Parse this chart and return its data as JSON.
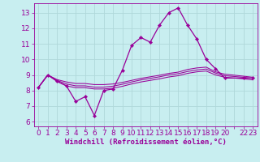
{
  "background_color": "#c8eef0",
  "grid_color": "#b0d8da",
  "line_color": "#990099",
  "xlabel": "Windchill (Refroidissement éolien,°C)",
  "ylabel_ticks": [
    6,
    7,
    8,
    9,
    10,
    11,
    12,
    13
  ],
  "line1_x": [
    0,
    1,
    2,
    3,
    4,
    5,
    6,
    7,
    8,
    9,
    10,
    11,
    12,
    13,
    14,
    15,
    16,
    17,
    18,
    19,
    20,
    22,
    23
  ],
  "line1_y": [
    8.2,
    9.0,
    8.6,
    8.3,
    7.3,
    7.6,
    6.4,
    8.0,
    8.1,
    9.3,
    10.9,
    11.4,
    11.1,
    12.2,
    13.0,
    13.3,
    12.2,
    11.3,
    10.0,
    9.4,
    8.8,
    8.8,
    8.8
  ],
  "line2_x": [
    0,
    1,
    2,
    3,
    4,
    5,
    6,
    7,
    8,
    9,
    10,
    11,
    12,
    13,
    14,
    15,
    16,
    17,
    18,
    19,
    20,
    22,
    23
  ],
  "line2_y": [
    8.2,
    9.0,
    8.7,
    8.55,
    8.45,
    8.45,
    8.38,
    8.38,
    8.42,
    8.52,
    8.65,
    8.78,
    8.88,
    8.98,
    9.1,
    9.18,
    9.35,
    9.45,
    9.5,
    9.2,
    9.05,
    8.92,
    8.85
  ],
  "line3_x": [
    0,
    1,
    2,
    3,
    4,
    5,
    6,
    7,
    8,
    9,
    10,
    11,
    12,
    13,
    14,
    15,
    16,
    17,
    18,
    19,
    20,
    22,
    23
  ],
  "line3_y": [
    8.2,
    9.0,
    8.65,
    8.42,
    8.3,
    8.3,
    8.22,
    8.22,
    8.28,
    8.4,
    8.55,
    8.68,
    8.78,
    8.88,
    9.0,
    9.08,
    9.22,
    9.32,
    9.38,
    9.12,
    8.95,
    8.85,
    8.78
  ],
  "line4_x": [
    0,
    1,
    2,
    3,
    4,
    5,
    6,
    7,
    8,
    9,
    10,
    11,
    12,
    13,
    14,
    15,
    16,
    17,
    18,
    19,
    20,
    22,
    23
  ],
  "line4_y": [
    8.2,
    9.0,
    8.58,
    8.3,
    8.18,
    8.18,
    8.1,
    8.1,
    8.15,
    8.27,
    8.42,
    8.55,
    8.65,
    8.75,
    8.87,
    8.95,
    9.1,
    9.2,
    9.25,
    9.0,
    8.85,
    8.75,
    8.68
  ],
  "ylim": [
    5.7,
    13.6
  ],
  "xlim": [
    -0.5,
    23.5
  ],
  "fontsize_tick": 6.5,
  "fontsize_label": 6.5
}
